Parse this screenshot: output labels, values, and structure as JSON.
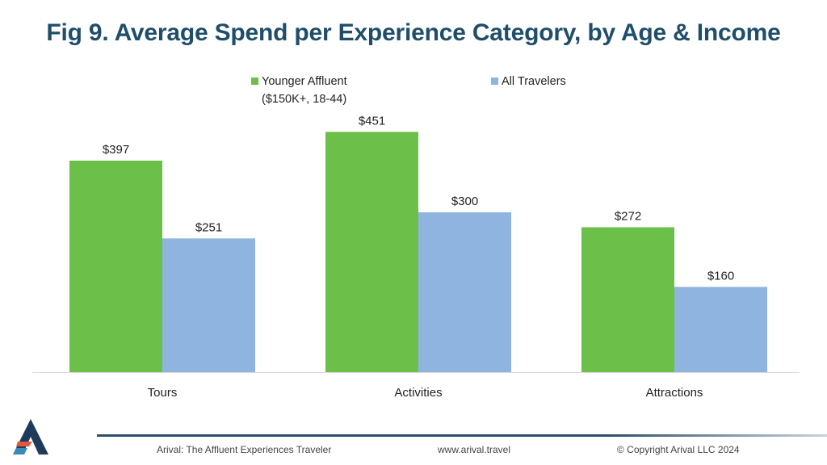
{
  "title": "Fig 9. Average Spend per Experience Category, by Age & Income",
  "footer": {
    "left": "Arival: The  Affluent Experiences Traveler",
    "center": "www.arival.travel",
    "right": "© Copyright Arival LLC 2024"
  },
  "colors": {
    "younger_affluent": "#6cc04a",
    "all_travelers": "#8fb4e0",
    "title": "#1f4e6b",
    "footer_rule": "#2f4d6a",
    "logo_dark": "#1f3a5a",
    "logo_accent": "#e05a3a",
    "logo_light": "#3a8ab8"
  },
  "chart_data": {
    "type": "bar",
    "title": "Fig 9. Average Spend per Experience Category, by Age & Income",
    "categories": [
      "Tours",
      "Activities",
      "Attractions"
    ],
    "series": [
      {
        "name": "Younger Affluent",
        "name_line2": "($150K+, 18-44)",
        "values": [
          397,
          451,
          272
        ],
        "labels": [
          "$397",
          "$451",
          "$272"
        ]
      },
      {
        "name": "All Travelers",
        "values": [
          251,
          300,
          160
        ],
        "labels": [
          "$251",
          "$300",
          "$160"
        ]
      }
    ],
    "xlabel": "",
    "ylabel": "",
    "ylim": [
      0,
      500
    ],
    "grid": false,
    "legend": "top"
  }
}
